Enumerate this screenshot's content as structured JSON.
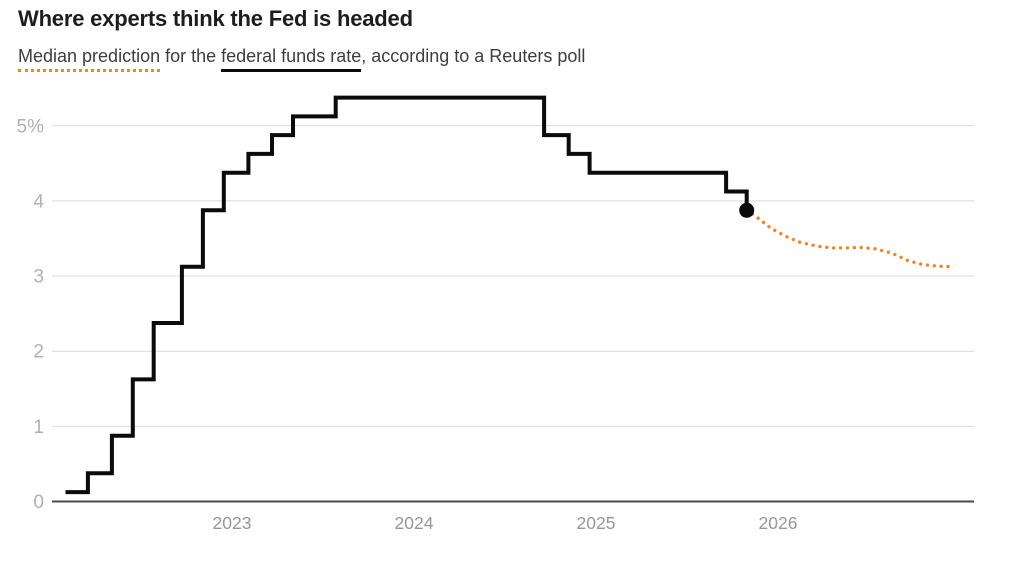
{
  "header": {
    "title": "Where experts think the Fed is headed",
    "subtitle": {
      "part1": "Median prediction",
      "part2": " for the ",
      "part3": "federal funds rate",
      "part4": ", according to a Reuters poll"
    }
  },
  "chart_data": {
    "type": "line",
    "title": "Where experts think the Fed is headed",
    "subtitle": "Median prediction for the federal funds rate, according to a Reuters poll",
    "unit": "percent",
    "x_axis": {
      "min": 2022.0,
      "max": 2027.0,
      "ticks": [
        2023,
        2024,
        2025,
        2026
      ]
    },
    "y_axis": {
      "min": 0,
      "max": 5.5,
      "ticks": [
        {
          "value": 0,
          "label": "0"
        },
        {
          "value": 1,
          "label": "1"
        },
        {
          "value": 2,
          "label": "2"
        },
        {
          "value": 3,
          "label": "3"
        },
        {
          "value": 4,
          "label": "4"
        },
        {
          "value": 5,
          "label": "5%"
        }
      ],
      "grid": true
    },
    "series": [
      {
        "name": "Federal funds rate (actual, step)",
        "style": "step",
        "color": "#0b0b0b",
        "points": [
          [
            2022.085,
            0.125
          ],
          [
            2022.208,
            0.375
          ],
          [
            2022.34,
            0.875
          ],
          [
            2022.455,
            1.625
          ],
          [
            2022.57,
            2.375
          ],
          [
            2022.725,
            3.125
          ],
          [
            2022.84,
            3.875
          ],
          [
            2022.955,
            4.375
          ],
          [
            2023.09,
            4.625
          ],
          [
            2023.22,
            4.875
          ],
          [
            2023.335,
            5.125
          ],
          [
            2023.57,
            5.375
          ],
          [
            2024.715,
            4.875
          ],
          [
            2024.85,
            4.625
          ],
          [
            2024.965,
            4.375
          ],
          [
            2025.715,
            4.125
          ],
          [
            2025.828,
            3.875
          ]
        ]
      },
      {
        "name": "Median prediction (Reuters poll, dotted)",
        "style": "dotted",
        "color": "#ee872b",
        "points": [
          [
            2025.828,
            3.875
          ],
          [
            2025.88,
            3.79
          ],
          [
            2025.96,
            3.64
          ],
          [
            2026.04,
            3.53
          ],
          [
            2026.12,
            3.45
          ],
          [
            2026.21,
            3.4
          ],
          [
            2026.29,
            3.375
          ],
          [
            2026.38,
            3.375
          ],
          [
            2026.46,
            3.38
          ],
          [
            2026.54,
            3.36
          ],
          [
            2026.63,
            3.3
          ],
          [
            2026.71,
            3.21
          ],
          [
            2026.79,
            3.155
          ],
          [
            2026.88,
            3.13
          ],
          [
            2026.96,
            3.125
          ]
        ]
      }
    ],
    "marker": {
      "x": 2025.828,
      "y": 3.875,
      "label": "current rate dot"
    },
    "colors": {
      "actual_line": "#0b0b0b",
      "forecast": "#ee872b",
      "grid": "#d9d9d9",
      "axis": "#4a4a4a",
      "y_label": "#b1b0b6",
      "x_label": "#97969c",
      "background": "#ffffff"
    },
    "legend_position": "none"
  }
}
